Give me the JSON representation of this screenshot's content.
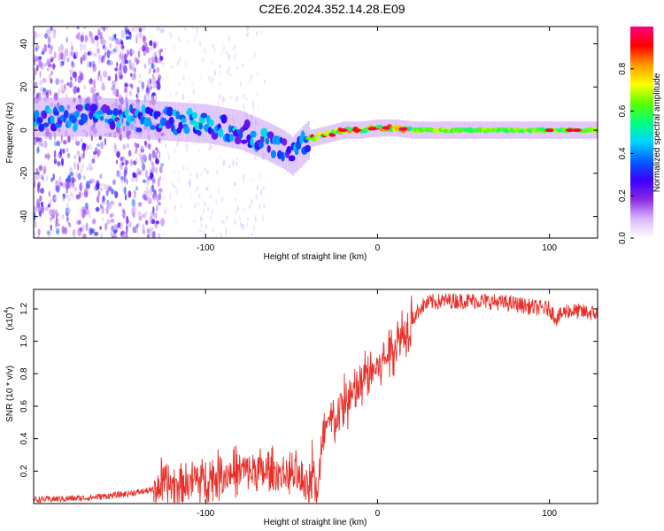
{
  "title": "C2E6.2024.352.14.28.E09",
  "chart_data": [
    {
      "type": "heatmap",
      "xlabel": "Height of straight line (km)",
      "ylabel": "Frequency (Hz)",
      "xlim": [
        -200,
        128
      ],
      "ylim": [
        -50,
        48
      ],
      "xticks": [
        -100,
        0,
        100
      ],
      "yticks": [
        -40,
        -20,
        0,
        20,
        40
      ],
      "ridge": {
        "x": [
          -190,
          -160,
          -140,
          -120,
          -100,
          -80,
          -65,
          -55,
          -50,
          -45,
          -40,
          -30,
          -20,
          -10,
          0,
          10,
          20,
          50,
          100,
          128
        ],
        "center_hz": [
          6,
          6,
          5,
          4,
          3,
          0,
          -5,
          -9,
          -12,
          -8,
          -4,
          -2,
          0,
          0,
          1,
          1,
          0,
          0,
          0,
          0
        ]
      },
      "colorbar": {
        "label": "Normalized spectral amplitude",
        "range": [
          0,
          1
        ],
        "ticks": [
          0.0,
          0.2,
          0.4,
          0.6,
          0.8
        ],
        "colors": [
          "#ffffff",
          "#d9b8ff",
          "#8a2be2",
          "#3a00ff",
          "#0060ff",
          "#00d4ff",
          "#00ff80",
          "#5aff00",
          "#ffff00",
          "#ff9900",
          "#ff0000",
          "#ff0080"
        ]
      }
    },
    {
      "type": "line",
      "xlabel": "Height of straight line (km)",
      "ylabel": "SNR (10 * v/v)",
      "scale_label": "(x10",
      "scale_exp": "4",
      "xlim": [
        -200,
        128
      ],
      "ylim": [
        0,
        1.32
      ],
      "xticks": [
        -100,
        0,
        100
      ],
      "yticks": [
        0.2,
        0.4,
        0.6,
        0.8,
        1.0,
        1.2
      ],
      "series": [
        {
          "color": "#e8302a",
          "x": [
            -200,
            -170,
            -150,
            -130,
            -110,
            -90,
            -80,
            -70,
            -60,
            -50,
            -45,
            -40,
            -38,
            -35,
            -32,
            -30,
            -25,
            -20,
            -15,
            -10,
            -5,
            0,
            5,
            10,
            15,
            20,
            25,
            30,
            40,
            50,
            60,
            70,
            80,
            90,
            100,
            104,
            110,
            120,
            128
          ],
          "y": [
            0.02,
            0.03,
            0.05,
            0.08,
            0.11,
            0.15,
            0.18,
            0.17,
            0.16,
            0.15,
            0.12,
            0.1,
            0.18,
            0.05,
            0.3,
            0.45,
            0.48,
            0.58,
            0.62,
            0.7,
            0.78,
            0.82,
            0.88,
            0.96,
            1.02,
            1.12,
            1.2,
            1.23,
            1.24,
            1.24,
            1.24,
            1.23,
            1.22,
            1.2,
            1.19,
            1.13,
            1.18,
            1.17,
            1.16
          ]
        }
      ]
    }
  ]
}
